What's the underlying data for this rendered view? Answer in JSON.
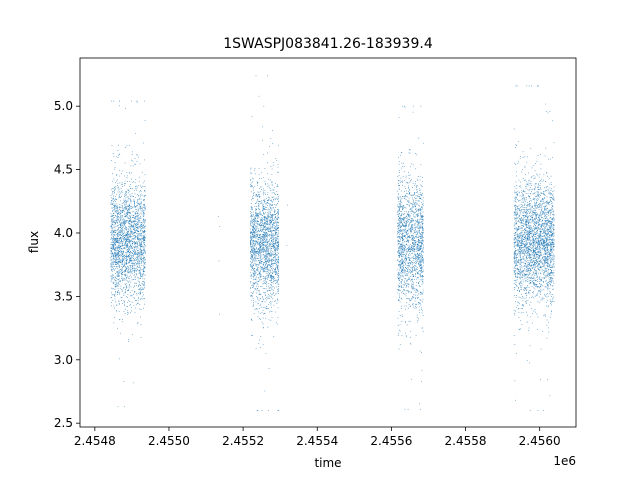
{
  "chart_data": {
    "type": "scatter",
    "title": "1SWASPJ083841.26-183939.4",
    "xlabel": "time",
    "ylabel": "flux",
    "x_offset_label": "1e6",
    "xlim": [
      2454760,
      2456098
    ],
    "ylim": [
      2.47,
      5.38
    ],
    "x_ticks": [
      2454800,
      2455000,
      2455200,
      2455400,
      2455600,
      2455800,
      2456000
    ],
    "x_tick_labels": [
      "2.4548",
      "2.4550",
      "2.4552",
      "2.4554",
      "2.4556",
      "2.4558",
      "2.4560"
    ],
    "y_ticks": [
      2.5,
      3.0,
      3.5,
      4.0,
      4.5,
      5.0
    ],
    "y_tick_labels": [
      "2.5",
      "3.0",
      "3.5",
      "4.0",
      "4.5",
      "5.0"
    ],
    "grid": false,
    "marker_color": "#1f77b4",
    "clusters": [
      {
        "x_start": 2454843,
        "x_end": 2454937,
        "center": 3.93,
        "spread": 0.24,
        "min": 2.63,
        "max": 5.04
      },
      {
        "x_start": 2455220,
        "x_end": 2455297,
        "center": 3.92,
        "spread": 0.24,
        "min": 2.6,
        "max": 5.24
      },
      {
        "x_start": 2455617,
        "x_end": 2455687,
        "center": 3.92,
        "spread": 0.26,
        "min": 2.61,
        "max": 5.0
      },
      {
        "x_start": 2455931,
        "x_end": 2456040,
        "center": 3.93,
        "spread": 0.24,
        "min": 2.6,
        "max": 5.16
      }
    ],
    "sparse_points": [
      {
        "x": 2455133,
        "y": 4.13
      },
      {
        "x": 2455135,
        "y": 3.78
      },
      {
        "x": 2455137,
        "y": 4.05
      },
      {
        "x": 2455136,
        "y": 3.36
      },
      {
        "x": 2455320,
        "y": 4.22
      },
      {
        "x": 2455318,
        "y": 3.9
      }
    ]
  }
}
